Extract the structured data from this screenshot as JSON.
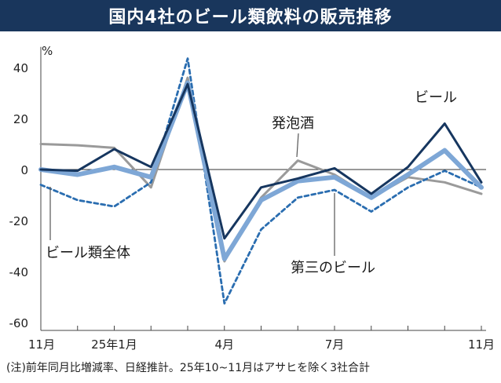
{
  "title": "国内4社のビール類飲料の販売推移",
  "note": "(注)前年同月比増減率、日経推計。25年10~11月はアサヒを除く3社合計",
  "chart_data": {
    "type": "line",
    "title": "国内4社のビール類飲料の販売推移",
    "ylabel": "%",
    "xlabel": "",
    "ylim": [
      -60,
      45
    ],
    "yticks": [
      -60,
      -40,
      -20,
      0,
      20,
      40
    ],
    "x": [
      "24/11",
      "24/12",
      "25/1",
      "25/2",
      "25/3",
      "25/4",
      "25/5",
      "25/6",
      "25/7",
      "25/8",
      "25/9",
      "25/10",
      "25/11"
    ],
    "xtick_labels": [
      {
        "index": 0,
        "label": "11月"
      },
      {
        "index": 2,
        "label": "25年1月"
      },
      {
        "index": 5,
        "label": "4月"
      },
      {
        "index": 8,
        "label": "7月"
      },
      {
        "index": 12,
        "label": "11月"
      }
    ],
    "series": [
      {
        "name": "発泡酒",
        "color": "#9a9a9a",
        "style": "solid",
        "values": [
          10,
          9.5,
          8.5,
          -7,
          36,
          -36,
          -11,
          3.5,
          -2,
          -11,
          -3,
          -5,
          -9.5
        ]
      },
      {
        "name": "第三のビール",
        "color": "#2a6db0",
        "style": "dashed",
        "values": [
          -6,
          -12,
          -14.5,
          -5,
          43.5,
          -52.5,
          -23.5,
          -11,
          -8,
          -16.5,
          -7,
          -0.5,
          -7
        ]
      },
      {
        "name": "ビール類全体",
        "color": "#7ea7d6",
        "style": "thick",
        "values": [
          0,
          -2,
          1,
          -3,
          34,
          -35,
          -12,
          -4.5,
          -3,
          -11,
          -2,
          7.5,
          -7
        ]
      },
      {
        "name": "ビール",
        "color": "#16365f",
        "style": "solid",
        "values": [
          0,
          -0.5,
          8,
          1,
          33.5,
          -27,
          -7,
          -3.5,
          0.5,
          -9.5,
          1,
          18,
          -5
        ]
      }
    ],
    "annotations": [
      "ビール",
      "発泡酒",
      "ビール類全体",
      "第三のビール"
    ],
    "grid": false,
    "zero_line": true
  }
}
